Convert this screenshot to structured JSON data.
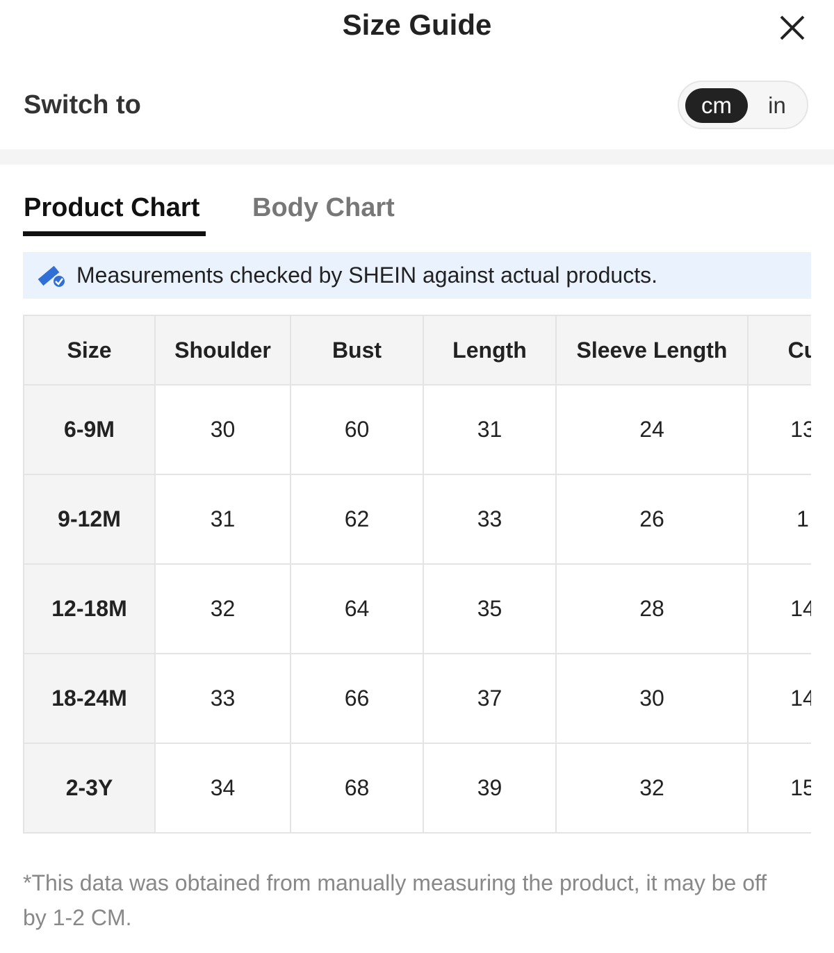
{
  "header": {
    "title": "Size Guide"
  },
  "switch": {
    "label": "Switch to",
    "options": [
      "cm",
      "in"
    ]
  },
  "tabs": [
    "Product Chart",
    "Body Chart"
  ],
  "notice": "Measurements checked by SHEIN against actual products.",
  "table": {
    "columns": [
      "Size",
      "Shoulder",
      "Bust",
      "Length",
      "Sleeve Length",
      "Cu"
    ],
    "rows": [
      [
        "6-9M",
        "30",
        "60",
        "31",
        "24",
        "13"
      ],
      [
        "9-12M",
        "31",
        "62",
        "33",
        "26",
        "1"
      ],
      [
        "12-18M",
        "32",
        "64",
        "35",
        "28",
        "14"
      ],
      [
        "18-24M",
        "33",
        "66",
        "37",
        "30",
        "14"
      ],
      [
        "2-3Y",
        "34",
        "68",
        "39",
        "32",
        "15"
      ]
    ]
  },
  "footnote": "*This data was obtained from manually measuring the product, it may be off by 1-2 CM."
}
